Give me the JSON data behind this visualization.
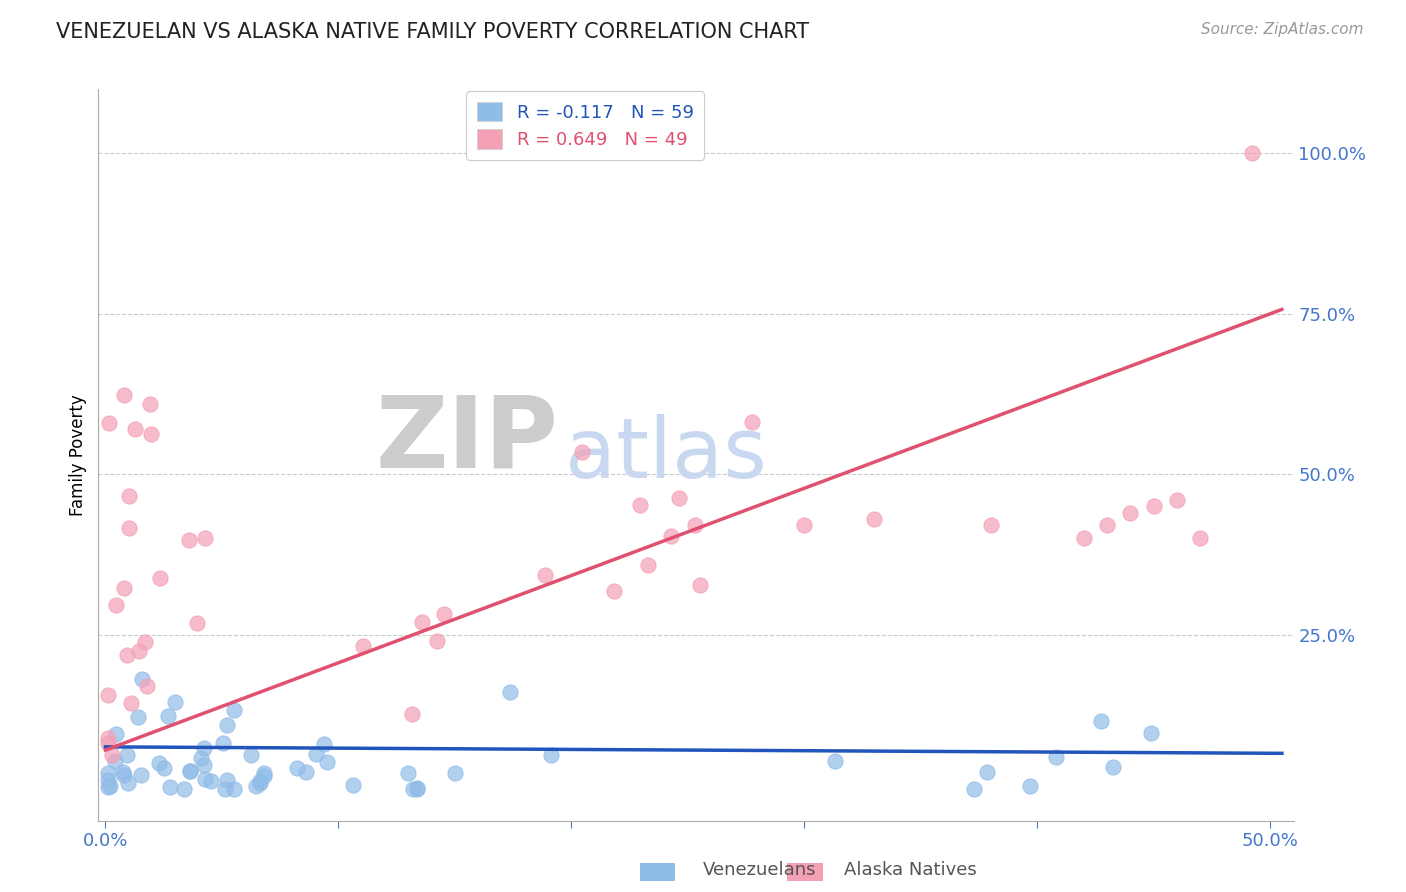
{
  "title": "VENEZUELAN VS ALASKA NATIVE FAMILY POVERTY CORRELATION CHART",
  "source": "Source: ZipAtlas.com",
  "ylabel": "Family Poverty",
  "ytick_labels": [
    "100.0%",
    "75.0%",
    "50.0%",
    "25.0%"
  ],
  "ytick_values": [
    1.0,
    0.75,
    0.5,
    0.25
  ],
  "xlim": [
    0.0,
    0.5
  ],
  "ylim": [
    -0.04,
    1.1
  ],
  "venezuelan_R": -0.117,
  "venezuelan_N": 59,
  "alaska_R": 0.649,
  "alaska_N": 49,
  "venezuelan_color": "#90bce8",
  "alaska_color": "#f4a0b5",
  "venezuelan_line_color": "#2255bb",
  "alaska_line_color": "#e05070",
  "watermark_zip_color": "#cccccc",
  "watermark_atlas_color": "#c8d8f0",
  "legend_entry1": "R = -0.117   N = 59",
  "legend_entry2": "R = 0.649   N = 49",
  "background_color": "#ffffff",
  "grid_color": "#cccccc",
  "spine_color": "#aaaaaa",
  "tick_color": "#4477cc",
  "title_color": "#222222",
  "source_color": "#999999",
  "legend_text_color1": "#2255bb",
  "legend_text_color2": "#e05070"
}
